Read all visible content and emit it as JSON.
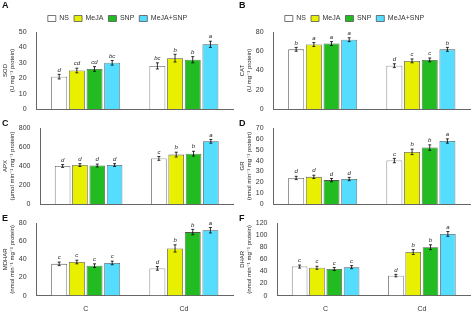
{
  "chart_data": [
    {
      "type": "bar",
      "title": "A",
      "ylabel": "SOD\n(U mg⁻¹ protein)",
      "categories": [
        "C",
        "Cd"
      ],
      "ylim": [
        0,
        50
      ],
      "yticks": [
        0,
        10,
        20,
        30,
        40,
        50
      ],
      "grid": false,
      "legend": "top",
      "tick_labels": "y",
      "series": [
        {
          "name": "NS",
          "color": "white",
          "values": [
            21,
            28
          ],
          "errors": [
            1.5,
            2
          ],
          "annotations": [
            "d",
            "bc"
          ]
        },
        {
          "name": "MeJA",
          "color": "#e8f000",
          "values": [
            25,
            33
          ],
          "errors": [
            1.5,
            2.5
          ],
          "annotations": [
            "cd",
            "b"
          ]
        },
        {
          "name": "SNP",
          "color": "#22bb22",
          "values": [
            26,
            32
          ],
          "errors": [
            1.5,
            2
          ],
          "annotations": [
            "cd",
            "b"
          ]
        },
        {
          "name": "MeJA+SNP",
          "color": "#55ddff",
          "values": [
            30,
            42
          ],
          "errors": [
            1.5,
            2
          ],
          "annotations": [
            "bc",
            "a"
          ]
        }
      ]
    },
    {
      "type": "bar",
      "title": "B",
      "ylabel": "CAT\n(U mg⁻¹ protein)",
      "categories": [
        "C",
        "Cd"
      ],
      "ylim": [
        0,
        80
      ],
      "yticks": [
        0,
        20,
        40,
        60,
        80
      ],
      "grid": false,
      "legend": "top",
      "tick_labels": "y",
      "series": [
        {
          "name": "NS",
          "color": "white",
          "values": [
            62,
            45
          ],
          "errors": [
            2,
            2
          ],
          "annotations": [
            "b",
            "d"
          ]
        },
        {
          "name": "MeJA",
          "color": "#e8f000",
          "values": [
            67,
            50
          ],
          "errors": [
            2,
            2
          ],
          "annotations": [
            "a",
            "c"
          ]
        },
        {
          "name": "SNP",
          "color": "#22bb22",
          "values": [
            68,
            51
          ],
          "errors": [
            2,
            2
          ],
          "annotations": [
            "a",
            "c"
          ]
        },
        {
          "name": "MeJA+SNP",
          "color": "#55ddff",
          "values": [
            72,
            62
          ],
          "errors": [
            2,
            2
          ],
          "annotations": [
            "a",
            "b"
          ]
        }
      ]
    },
    {
      "type": "bar",
      "title": "C",
      "ylabel": "APX\n(µmol min⁻¹ mg⁻¹ protein)",
      "categories": [
        "C",
        "Cd"
      ],
      "ylim": [
        0,
        800
      ],
      "yticks": [
        0,
        200,
        400,
        600,
        800
      ],
      "grid": false,
      "tick_labels": "y",
      "series": [
        {
          "name": "NS",
          "color": "white",
          "values": [
            400,
            480
          ],
          "errors": [
            15,
            20
          ],
          "annotations": [
            "d",
            "c"
          ]
        },
        {
          "name": "MeJA",
          "color": "#e8f000",
          "values": [
            410,
            520
          ],
          "errors": [
            15,
            25
          ],
          "annotations": [
            "d",
            "b"
          ]
        },
        {
          "name": "SNP",
          "color": "#22bb22",
          "values": [
            405,
            530
          ],
          "errors": [
            15,
            25
          ],
          "annotations": [
            "d",
            "b"
          ]
        },
        {
          "name": "MeJA+SNP",
          "color": "#55ddff",
          "values": [
            410,
            660
          ],
          "errors": [
            15,
            20
          ],
          "annotations": [
            "d",
            "a"
          ]
        }
      ]
    },
    {
      "type": "bar",
      "title": "D",
      "ylabel": "GR\n(nmol min⁻¹ mg⁻¹ protein)",
      "categories": [
        "C",
        "Cd"
      ],
      "ylim": [
        0,
        70
      ],
      "yticks": [
        0,
        10,
        20,
        30,
        40,
        50,
        60,
        70
      ],
      "grid": false,
      "tick_labels": "y",
      "series": [
        {
          "name": "NS",
          "color": "white",
          "values": [
            24,
            40
          ],
          "errors": [
            1.5,
            2
          ],
          "annotations": [
            "d",
            "c"
          ]
        },
        {
          "name": "MeJA",
          "color": "#e8f000",
          "values": [
            25,
            48
          ],
          "errors": [
            1.5,
            2.5
          ],
          "annotations": [
            "d",
            "b"
          ]
        },
        {
          "name": "SNP",
          "color": "#22bb22",
          "values": [
            22,
            52
          ],
          "errors": [
            1.5,
            2.5
          ],
          "annotations": [
            "d",
            "b"
          ]
        },
        {
          "name": "MeJA+SNP",
          "color": "#55ddff",
          "values": [
            23,
            58
          ],
          "errors": [
            1.5,
            2
          ],
          "annotations": [
            "d",
            "a"
          ]
        }
      ]
    },
    {
      "type": "bar",
      "title": "E",
      "ylabel": "MDHAR\n(nmol min⁻¹ mg⁻¹ protein)",
      "categories": [
        "C",
        "Cd"
      ],
      "ylim": [
        0,
        80
      ],
      "yticks": [
        0,
        20,
        40,
        60,
        80
      ],
      "grid": false,
      "series": [
        {
          "name": "NS",
          "color": "white",
          "values": [
            35,
            30
          ],
          "errors": [
            2,
            2
          ],
          "annotations": [
            "c",
            "d"
          ]
        },
        {
          "name": "MeJA",
          "color": "#e8f000",
          "values": [
            37,
            52
          ],
          "errors": [
            2,
            4
          ],
          "annotations": [
            "c",
            "b"
          ]
        },
        {
          "name": "SNP",
          "color": "#22bb22",
          "values": [
            33,
            70
          ],
          "errors": [
            2,
            3
          ],
          "annotations": [
            "c",
            "b"
          ]
        },
        {
          "name": "MeJA+SNP",
          "color": "#55ddff",
          "values": [
            36,
            72
          ],
          "errors": [
            2,
            3
          ],
          "annotations": [
            "c",
            "a"
          ]
        }
      ]
    },
    {
      "type": "bar",
      "title": "F",
      "ylabel": "DHAR\n(nmol min⁻¹ mg⁻¹ protein)",
      "categories": [
        "C",
        "Cd"
      ],
      "ylim": [
        0,
        120
      ],
      "yticks": [
        0,
        20,
        40,
        60,
        80,
        100,
        120
      ],
      "grid": false,
      "series": [
        {
          "name": "NS",
          "color": "white",
          "values": [
            48,
            33
          ],
          "errors": [
            2.5,
            2
          ],
          "annotations": [
            "c",
            "d"
          ]
        },
        {
          "name": "MeJA",
          "color": "#e8f000",
          "values": [
            46,
            72
          ],
          "errors": [
            2.5,
            4
          ],
          "annotations": [
            "c",
            "b"
          ]
        },
        {
          "name": "SNP",
          "color": "#22bb22",
          "values": [
            44,
            80
          ],
          "errors": [
            2.5,
            4
          ],
          "annotations": [
            "c",
            "b"
          ]
        },
        {
          "name": "MeJA+SNP",
          "color": "#55ddff",
          "values": [
            47,
            102
          ],
          "errors": [
            2.5,
            4
          ],
          "annotations": [
            "c",
            "a"
          ]
        }
      ]
    }
  ]
}
